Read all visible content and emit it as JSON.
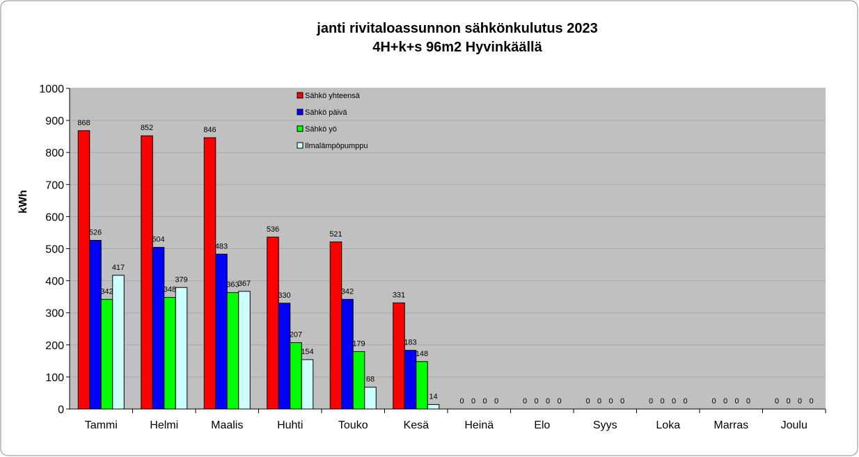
{
  "chart_data": {
    "type": "bar",
    "title": "janti rivitaloassunnon sähkönkulutus 2023",
    "subtitle": "4H+k+s 96m2 Hyvinkäällä",
    "xlabel": "",
    "ylabel": "kWh",
    "ylim": [
      0,
      1000
    ],
    "yticks": [
      0,
      100,
      200,
      300,
      400,
      500,
      600,
      700,
      800,
      900,
      1000
    ],
    "grid": true,
    "legend_placement": "top-center",
    "plot_background": "#c0c0c0",
    "categories": [
      "Tammi",
      "Helmi",
      "Maalis",
      "Huhti",
      "Touko",
      "Kesä",
      "Heinä",
      "Elo",
      "Syys",
      "Loka",
      "Marras",
      "Joulu"
    ],
    "series": [
      {
        "name": "Sähkö yhteensä",
        "color": "#ff0000",
        "values": [
          868,
          852,
          846,
          536,
          521,
          331,
          0,
          0,
          0,
          0,
          0,
          0
        ]
      },
      {
        "name": "Sähkö päivä",
        "color": "#0000ff",
        "values": [
          526,
          504,
          483,
          330,
          342,
          183,
          0,
          0,
          0,
          0,
          0,
          0
        ]
      },
      {
        "name": "Sähkö yö",
        "color": "#00ff00",
        "values": [
          342,
          348,
          363,
          207,
          179,
          148,
          0,
          0,
          0,
          0,
          0,
          0
        ]
      },
      {
        "name": "Ilmalämpöpumppu",
        "color": "#ccffff",
        "values": [
          417,
          379,
          367,
          154,
          68,
          14,
          0,
          0,
          0,
          0,
          0,
          0
        ]
      }
    ]
  }
}
